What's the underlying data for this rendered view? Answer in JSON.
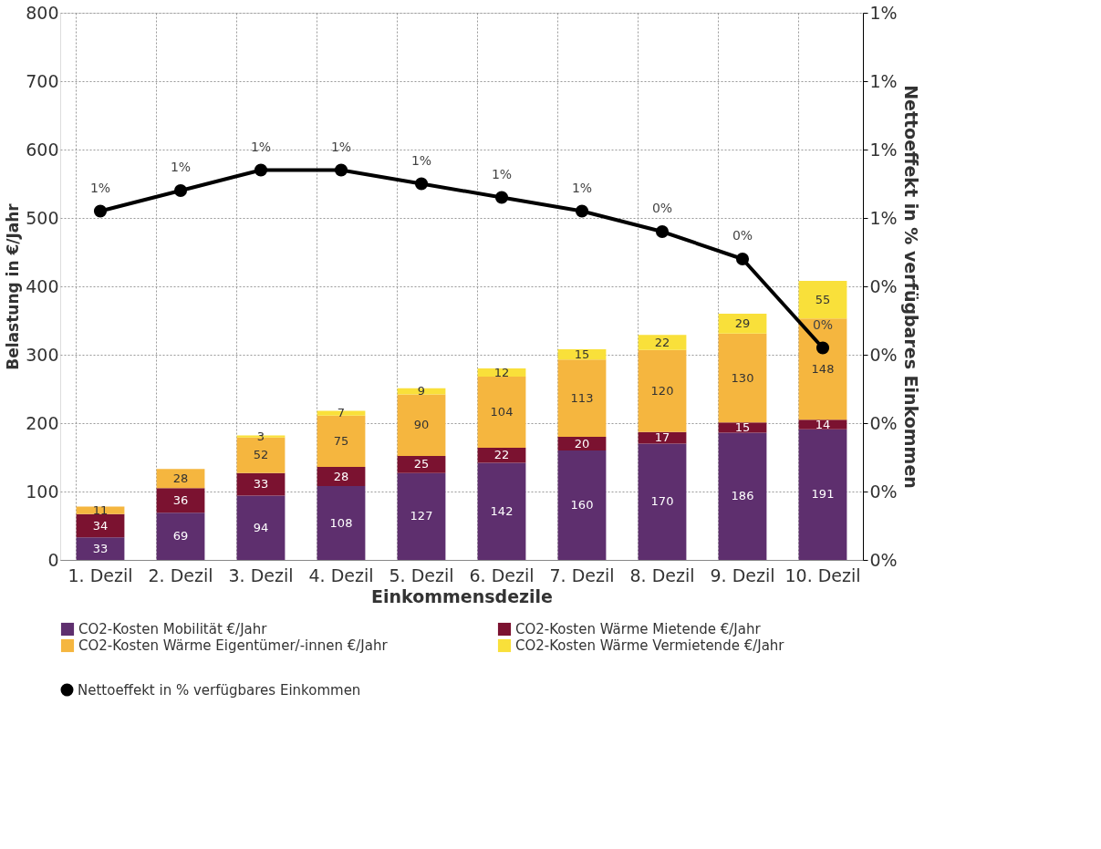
{
  "chart_data": {
    "type": "bar",
    "stacked": true,
    "xlabel": "Einkommensdezile",
    "ylabel": "Belastung in €/Jahr",
    "y2label": "Nettoeffekt in % verfügbares Einkommen",
    "categories": [
      "1. Dezil",
      "2. Dezil",
      "3. Dezil",
      "4. Dezil",
      "5. Dezil",
      "6. Dezil",
      "7. Dezil",
      "8. Dezil",
      "9. Dezil",
      "10. Dezil"
    ],
    "series": [
      {
        "name": "CO2-Kosten Mobilität €/Jahr",
        "color": "#5e2f6e",
        "values": [
          33,
          69,
          94,
          108,
          127,
          142,
          160,
          170,
          186,
          191
        ]
      },
      {
        "name": "CO2-Kosten Wärme Mietende €/Jahr",
        "color": "#7b1230",
        "values": [
          34,
          36,
          33,
          28,
          25,
          22,
          20,
          17,
          15,
          14
        ]
      },
      {
        "name": "CO2-Kosten Wärme Eigentümer/-innen €/Jahr",
        "color": "#f5b63f",
        "values": [
          11,
          28,
          52,
          75,
          90,
          104,
          113,
          120,
          130,
          148
        ]
      },
      {
        "name": "CO2-Kosten Wärme Vermietende €/Jahr",
        "color": "#f9e03a",
        "values": [
          null,
          null,
          3,
          7,
          9,
          12,
          15,
          22,
          29,
          55
        ]
      },
      {
        "name": "Nettoeffekt in % verfügbares Einkommen",
        "type": "line",
        "axis": "y2",
        "color": "#000000",
        "values": [
          0.51,
          0.54,
          0.57,
          0.57,
          0.55,
          0.53,
          0.51,
          0.48,
          0.44,
          0.31
        ],
        "value_labels": [
          "1%",
          "1%",
          "1%",
          "1%",
          "1%",
          "1%",
          "1%",
          "0%",
          "0%",
          "0%"
        ]
      }
    ],
    "data_labels": true,
    "ylim": [
      0,
      800
    ],
    "yticks": [
      0,
      100,
      200,
      300,
      400,
      500,
      600,
      700,
      800
    ],
    "y2lim": [
      0,
      0.8
    ],
    "y2ticks": [
      {
        "value": 0,
        "label": "0%"
      },
      {
        "value": 0.1,
        "label": "0%"
      },
      {
        "value": 0.2,
        "label": "0%"
      },
      {
        "value": 0.3,
        "label": "0%"
      },
      {
        "value": 0.4,
        "label": "0%"
      },
      {
        "value": 0.5,
        "label": "1%"
      },
      {
        "value": 0.6,
        "label": "1%"
      },
      {
        "value": 0.7,
        "label": "1%"
      },
      {
        "value": 0.8,
        "label": "1%"
      }
    ],
    "grid": true,
    "legend": "bottom",
    "marker": "circle",
    "line_style": "solid"
  }
}
